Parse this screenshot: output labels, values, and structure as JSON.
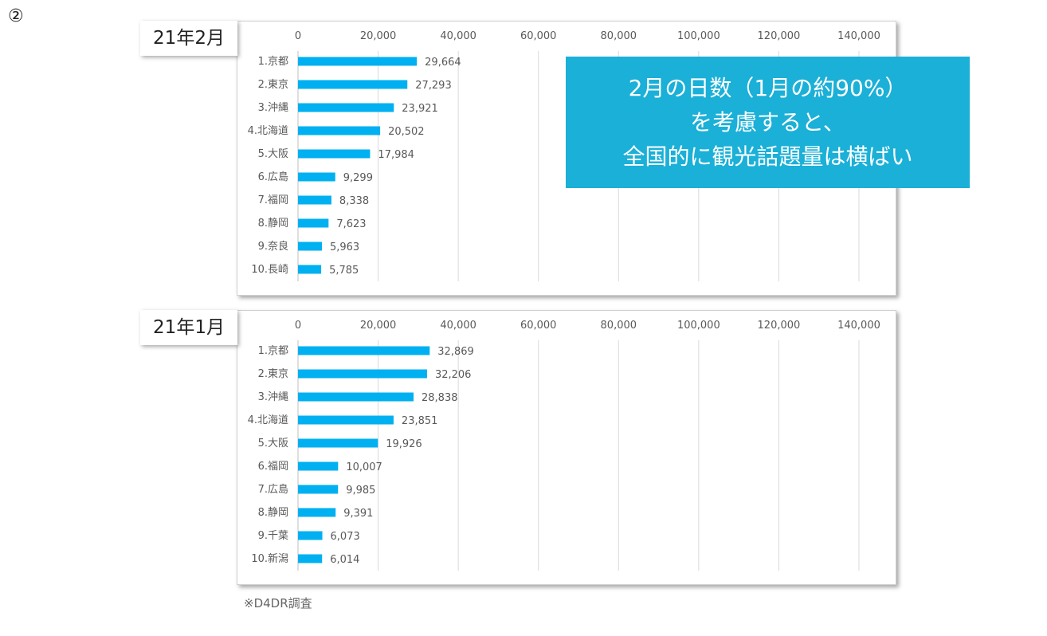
{
  "slide_number": "②",
  "period_labels": [
    "21年2月",
    "21年1月"
  ],
  "callout": {
    "lines": [
      "2月の日数（1月の約90%）",
      "を考慮すると、",
      "全国的に観光話題量は横ばい"
    ]
  },
  "source_note": "※D4DR調査",
  "colors": {
    "bar": "#00b0f0",
    "callout_bg": "#1ab0d8",
    "grid": "#d9d9d9"
  },
  "chart_data": [
    {
      "type": "bar",
      "orientation": "horizontal",
      "xlim": [
        0,
        140000
      ],
      "x_ticks": [
        "0",
        "20,000",
        "40,000",
        "60,000",
        "80,000",
        "100,000",
        "120,000",
        "140,000"
      ],
      "categories": [
        "1.京都",
        "2.東京",
        "3.沖縄",
        "4.北海道",
        "5.大阪",
        "6.広島",
        "7.福岡",
        "8.静岡",
        "9.奈良",
        "10.長崎"
      ],
      "values": [
        29664,
        27293,
        23921,
        20502,
        17984,
        9299,
        8338,
        7623,
        5963,
        5785
      ],
      "value_labels": [
        "29,664",
        "27,293",
        "23,921",
        "20,502",
        "17,984",
        "9,299",
        "8,338",
        "7,623",
        "5,963",
        "5,785"
      ],
      "grid": true
    },
    {
      "type": "bar",
      "orientation": "horizontal",
      "xlim": [
        0,
        140000
      ],
      "x_ticks": [
        "0",
        "20,000",
        "40,000",
        "60,000",
        "80,000",
        "100,000",
        "120,000",
        "140,000"
      ],
      "categories": [
        "1.京都",
        "2.東京",
        "3.沖縄",
        "4.北海道",
        "5.大阪",
        "6.福岡",
        "7.広島",
        "8.静岡",
        "9.千葉",
        "10.新潟"
      ],
      "values": [
        32869,
        32206,
        28838,
        23851,
        19926,
        10007,
        9985,
        9391,
        6073,
        6014
      ],
      "value_labels": [
        "32,869",
        "32,206",
        "28,838",
        "23,851",
        "19,926",
        "10,007",
        "9,985",
        "9,391",
        "6,073",
        "6,014"
      ],
      "grid": true
    }
  ]
}
